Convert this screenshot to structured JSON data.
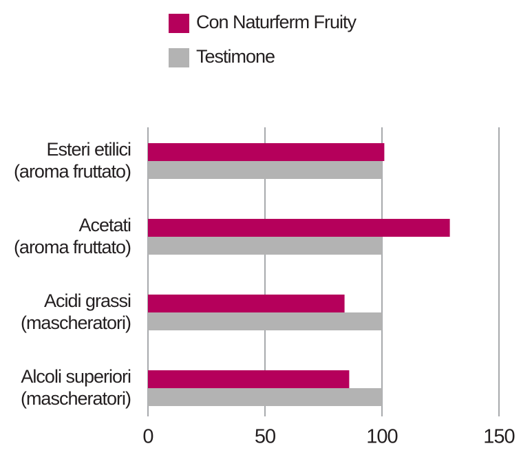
{
  "chart_data": {
    "type": "hbar",
    "categories": [
      [
        "Esteri etilici",
        "(aroma fruttato)"
      ],
      [
        "Acetati",
        "(aroma fruttato)"
      ],
      [
        "Acidi grassi",
        "(mascheratori)"
      ],
      [
        "Alcoli superiori",
        "(mascheratori)"
      ]
    ],
    "series": [
      {
        "name": "Con Naturferm Fruity",
        "color": "#b5005b",
        "values": [
          101,
          129,
          84,
          86
        ]
      },
      {
        "name": "Testimone",
        "color": "#b3b3b3",
        "values": [
          100,
          100,
          100,
          100
        ]
      }
    ],
    "xlim": [
      0,
      160
    ],
    "xticks": [
      0,
      50,
      100,
      150
    ],
    "grid": true
  }
}
